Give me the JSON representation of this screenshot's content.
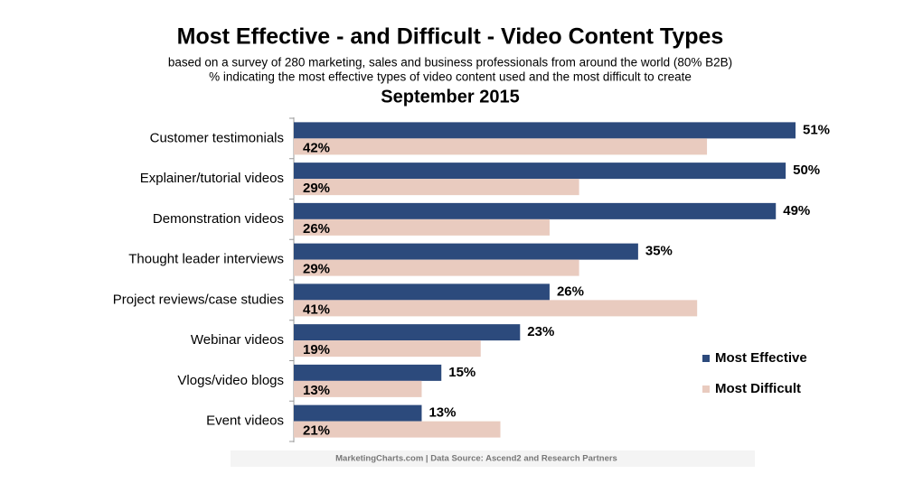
{
  "chart_data": {
    "type": "bar",
    "orientation": "horizontal",
    "title": "Most Effective - and Difficult - Video Content Types",
    "subtitle": [
      "based on a survey of 280 marketing, sales and business professionals from around the world (80% B2B)",
      "% indicating the most effective types of video content used and the most difficult to create"
    ],
    "date": "September 2015",
    "source": "MarketingCharts.com | Data Source: Ascend2 and Research Partners",
    "categories": [
      "Customer testimonials",
      "Explainer/tutorial videos",
      "Demonstration videos",
      "Thought leader interviews",
      "Project reviews/case studies",
      "Webinar videos",
      "Vlogs/video blogs",
      "Event videos"
    ],
    "series": [
      {
        "name": "Most Effective",
        "color": "#2c4a7c",
        "values": [
          51,
          50,
          49,
          35,
          26,
          23,
          15,
          13
        ],
        "value_labels": [
          "51%",
          "50%",
          "49%",
          "35%",
          "26%",
          "23%",
          "15%",
          "13%"
        ]
      },
      {
        "name": "Most Difficult",
        "color": "#e9cbbf",
        "values": [
          42,
          29,
          26,
          29,
          41,
          19,
          13,
          21
        ],
        "value_labels": [
          "42%",
          "29%",
          "26%",
          "29%",
          "41%",
          "19%",
          "13%",
          "21%"
        ]
      }
    ],
    "legend": "right"
  }
}
